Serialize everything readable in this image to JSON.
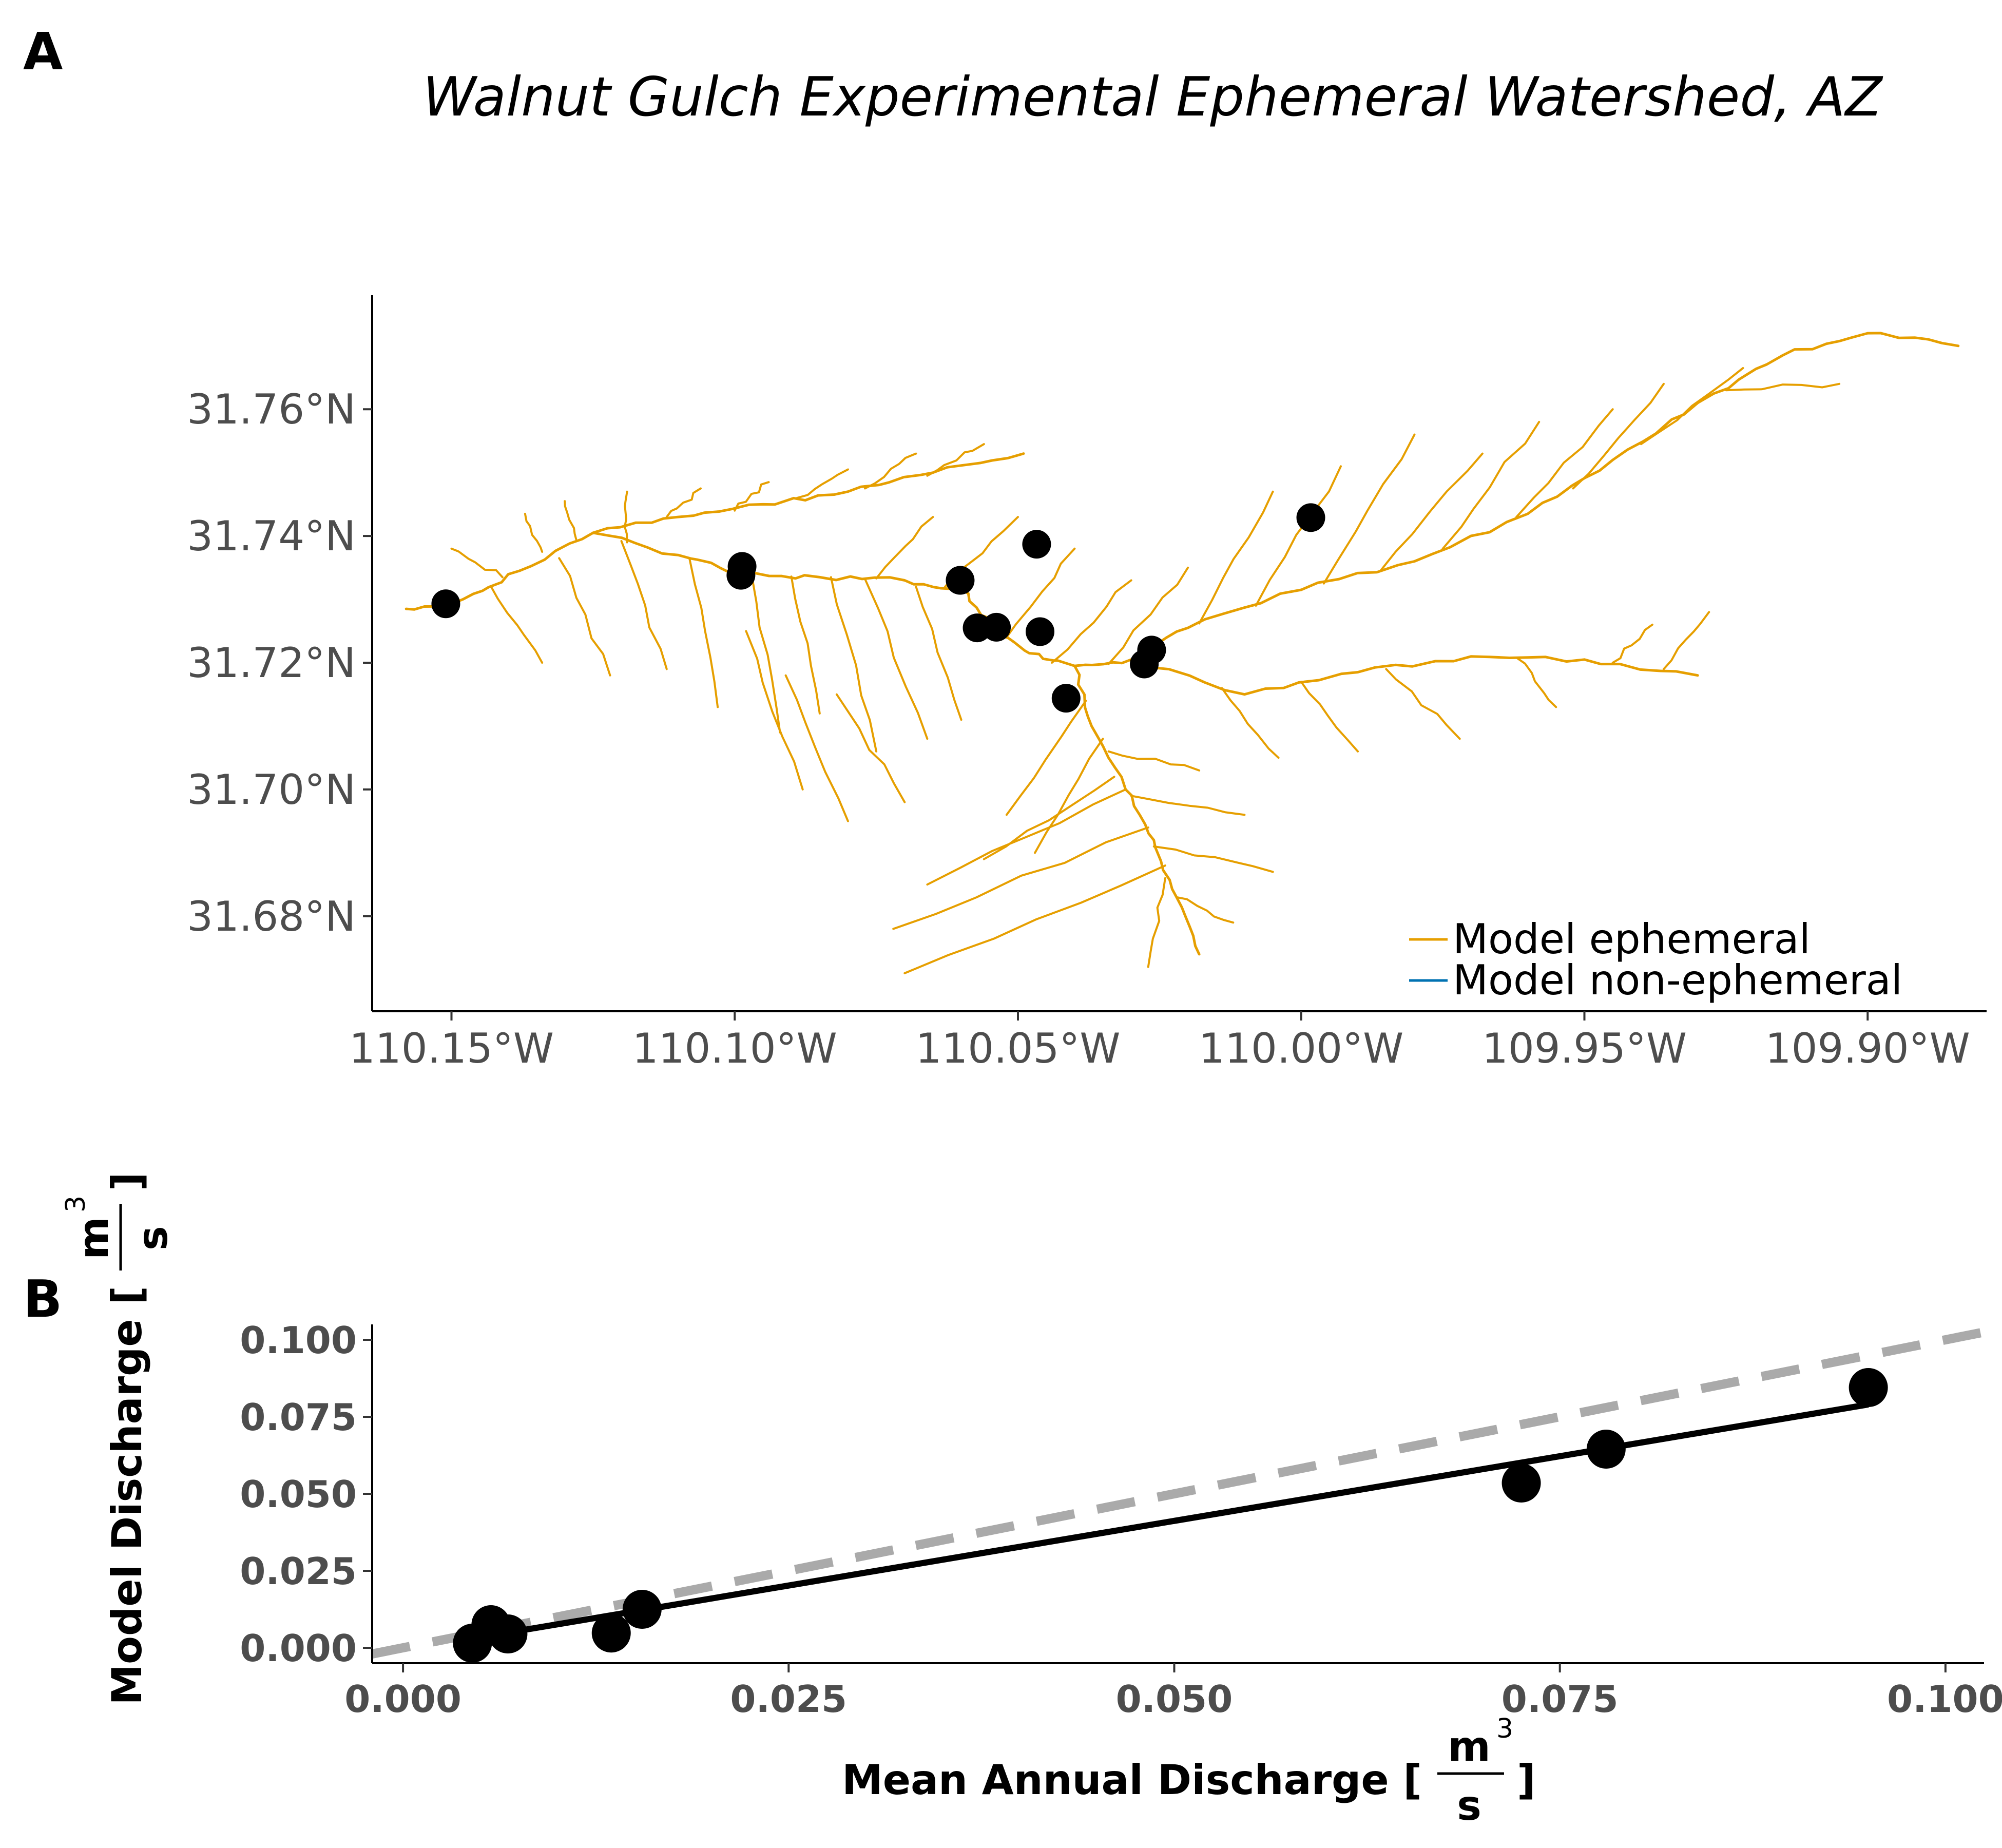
{
  "panel_a_letter": "A",
  "panel_b_letter": "B",
  "colors": {
    "ephemeral": "#E69F00",
    "non_ephemeral": "#0072B2",
    "points": "#000000",
    "fit_line": "#000000",
    "one_to_one": "#aaaaaa",
    "tick_text": "#4d4d4d"
  },
  "chart_data": [
    {
      "type": "map",
      "title": "Walnut Gulch Experimental Ephemeral Watershed, AZ",
      "xlim": [
        -110.164,
        -109.879
      ],
      "ylim": [
        31.665,
        31.778
      ],
      "x_ticks": [
        {
          "value": -110.15,
          "label": "110.15°W"
        },
        {
          "value": -110.1,
          "label": "110.10°W"
        },
        {
          "value": -110.05,
          "label": "110.05°W"
        },
        {
          "value": -110.0,
          "label": "110.00°W"
        },
        {
          "value": -109.95,
          "label": "109.95°W"
        },
        {
          "value": -109.9,
          "label": "109.90°W"
        }
      ],
      "y_ticks": [
        {
          "value": 31.68,
          "label": "31.68°N"
        },
        {
          "value": 31.7,
          "label": "31.70°N"
        },
        {
          "value": 31.72,
          "label": "31.72°N"
        },
        {
          "value": 31.74,
          "label": "31.74°N"
        },
        {
          "value": 31.76,
          "label": "31.76°N"
        }
      ],
      "legend": {
        "position": "bottom-right",
        "entries": [
          {
            "label": "Model ephemeral",
            "color": "#E69F00"
          },
          {
            "label": "Model non-ephemeral",
            "color": "#0072B2"
          }
        ]
      },
      "gauges": [
        {
          "lon": -110.151,
          "lat": 31.7293
        },
        {
          "lon": -110.0987,
          "lat": 31.7352
        },
        {
          "lon": -110.0989,
          "lat": 31.7338
        },
        {
          "lon": -110.0602,
          "lat": 31.733
        },
        {
          "lon": -110.0572,
          "lat": 31.7255
        },
        {
          "lon": -110.0538,
          "lat": 31.7256
        },
        {
          "lon": -110.0467,
          "lat": 31.7387
        },
        {
          "lon": -110.0461,
          "lat": 31.7249
        },
        {
          "lon": -110.0415,
          "lat": 31.7144
        },
        {
          "lon": -110.0277,
          "lat": 31.7198
        },
        {
          "lon": -110.0264,
          "lat": 31.722
        },
        {
          "lon": -109.9983,
          "lat": 31.7429
        }
      ],
      "network": {
        "main_channel": [
          [
            -110.158,
            31.7285
          ],
          [
            -110.148,
            31.73
          ],
          [
            -110.138,
            31.7345
          ],
          [
            -110.125,
            31.7405
          ],
          [
            -110.11,
            31.737
          ],
          [
            -110.099,
            31.734
          ],
          [
            -110.085,
            31.7335
          ],
          [
            -110.07,
            31.733
          ],
          [
            -110.06,
            31.7315
          ],
          [
            -110.055,
            31.726
          ],
          [
            -110.048,
            31.7215
          ],
          [
            -110.04,
            31.7195
          ],
          [
            -110.03,
            31.7205
          ],
          [
            -110.02,
            31.7255
          ],
          [
            -110.0,
            31.7315
          ],
          [
            -109.98,
            31.736
          ],
          [
            -109.96,
            31.7435
          ],
          [
            -109.945,
            31.752
          ],
          [
            -109.93,
            31.761
          ],
          [
            -109.915,
            31.7685
          ],
          [
            -109.9,
            31.772
          ],
          [
            -109.884,
            31.77
          ]
        ],
        "upper_channel": [
          [
            -110.125,
            31.7405
          ],
          [
            -110.11,
            31.743
          ],
          [
            -110.095,
            31.745
          ],
          [
            -110.08,
            31.747
          ],
          [
            -110.065,
            31.75
          ],
          [
            -110.049,
            31.753
          ]
        ],
        "south_channel": [
          [
            -110.04,
            31.7195
          ],
          [
            -110.037,
            31.71
          ],
          [
            -110.031,
            31.7
          ],
          [
            -110.026,
            31.692
          ],
          [
            -110.022,
            31.683
          ],
          [
            -110.018,
            31.674
          ]
        ],
        "east_channel": [
          [
            -110.03,
            31.7205
          ],
          [
            -110.01,
            31.715
          ],
          [
            -109.99,
            31.7185
          ],
          [
            -109.97,
            31.721
          ],
          [
            -109.95,
            31.7205
          ],
          [
            -109.93,
            31.718
          ]
        ],
        "tributaries": [
          [
            [
              -110.141,
              31.7335
            ],
            [
              -110.15,
              31.738
            ]
          ],
          [
            [
              -110.134,
              31.7375
            ],
            [
              -110.137,
              31.7435
            ]
          ],
          [
            [
              -110.128,
              31.7395
            ],
            [
              -110.13,
              31.7455
            ]
          ],
          [
            [
              -110.119,
              31.739
            ],
            [
              -110.119,
              31.747
            ]
          ],
          [
            [
              -110.112,
              31.743
            ],
            [
              -110.106,
              31.7475
            ]
          ],
          [
            [
              -110.1,
              31.744
            ],
            [
              -110.094,
              31.7485
            ]
          ],
          [
            [
              -110.089,
              31.746
            ],
            [
              -110.08,
              31.7505
            ]
          ],
          [
            [
              -110.077,
              31.7475
            ],
            [
              -110.068,
              31.753
            ]
          ],
          [
            [
              -110.066,
              31.7495
            ],
            [
              -110.056,
              31.7545
            ]
          ],
          [
            [
              -110.075,
              31.7333
            ],
            [
              -110.065,
              31.743
            ]
          ],
          [
            [
              -110.063,
              31.7318
            ],
            [
              -110.05,
              31.743
            ]
          ],
          [
            [
              -110.052,
              31.724
            ],
            [
              -110.04,
              31.738
            ]
          ],
          [
            [
              -110.044,
              31.72
            ],
            [
              -110.03,
              31.733
            ]
          ],
          [
            [
              -110.034,
              31.7198
            ],
            [
              -110.02,
              31.735
            ]
          ],
          [
            [
              -110.018,
              31.7262
            ],
            [
              -110.005,
              31.747
            ]
          ],
          [
            [
              -110.008,
              31.729
            ],
            [
              -109.993,
              31.751
            ]
          ],
          [
            [
              -109.996,
              31.7325
            ],
            [
              -109.98,
              31.756
            ]
          ],
          [
            [
              -109.986,
              31.7345
            ],
            [
              -109.968,
              31.753
            ]
          ],
          [
            [
              -109.975,
              31.738
            ],
            [
              -109.958,
              31.758
            ]
          ],
          [
            [
              -109.962,
              31.743
            ],
            [
              -109.945,
              31.76
            ]
          ],
          [
            [
              -109.952,
              31.7475
            ],
            [
              -109.936,
              31.764
            ]
          ],
          [
            [
              -109.94,
              31.7545
            ],
            [
              -109.922,
              31.7665
            ]
          ],
          [
            [
              -109.925,
              31.763
            ],
            [
              -109.905,
              31.764
            ]
          ],
          [
            [
              -110.143,
              31.732
            ],
            [
              -110.134,
              31.72
            ]
          ],
          [
            [
              -110.131,
              31.7365
            ],
            [
              -110.122,
              31.718
            ]
          ],
          [
            [
              -110.12,
              31.7392
            ],
            [
              -110.112,
              31.719
            ]
          ],
          [
            [
              -110.108,
              31.7365
            ],
            [
              -110.103,
              31.713
            ]
          ],
          [
            [
              -110.097,
              31.7338
            ],
            [
              -110.092,
              31.709
            ]
          ],
          [
            [
              -110.09,
              31.7336
            ],
            [
              -110.085,
              31.712
            ]
          ],
          [
            [
              -110.083,
              31.7335
            ],
            [
              -110.075,
              31.706
            ]
          ],
          [
            [
              -110.077,
              31.7332
            ],
            [
              -110.066,
              31.708
            ]
          ],
          [
            [
              -110.098,
              31.725
            ],
            [
              -110.088,
              31.7
            ]
          ],
          [
            [
              -110.091,
              31.718
            ],
            [
              -110.08,
              31.695
            ]
          ],
          [
            [
              -110.082,
              31.715
            ],
            [
              -110.07,
              31.698
            ]
          ],
          [
            [
              -110.068,
              31.732
            ],
            [
              -110.06,
              31.711
            ]
          ],
          [
            [
              -110.038,
              31.714
            ],
            [
              -110.052,
              31.696
            ]
          ],
          [
            [
              -110.035,
              31.708
            ],
            [
              -110.047,
              31.69
            ]
          ],
          [
            [
              -110.033,
              31.702
            ],
            [
              -110.056,
              31.689
            ]
          ],
          [
            [
              -110.031,
              31.7
            ],
            [
              -110.066,
              31.685
            ]
          ],
          [
            [
              -110.027,
              31.694
            ],
            [
              -110.072,
              31.678
            ]
          ],
          [
            [
              -110.024,
              31.688
            ],
            [
              -110.07,
              31.671
            ]
          ],
          [
            [
              -110.034,
              31.706
            ],
            [
              -110.018,
              31.703
            ]
          ],
          [
            [
              -110.03,
              31.699
            ],
            [
              -110.01,
              31.696
            ]
          ],
          [
            [
              -110.026,
              31.691
            ],
            [
              -110.005,
              31.687
            ]
          ],
          [
            [
              -110.022,
              31.683
            ],
            [
              -110.012,
              31.679
            ]
          ],
          [
            [
              -110.024,
              31.686
            ],
            [
              -110.027,
              31.672
            ]
          ],
          [
            [
              -110.014,
              31.716
            ],
            [
              -110.004,
              31.705
            ]
          ],
          [
            [
              -110.0,
              31.717
            ],
            [
              -109.99,
              31.706
            ]
          ],
          [
            [
              -109.985,
              31.719
            ],
            [
              -109.972,
              31.708
            ]
          ],
          [
            [
              -109.962,
              31.7208
            ],
            [
              -109.955,
              31.713
            ]
          ],
          [
            [
              -109.945,
              31.72
            ],
            [
              -109.938,
              31.726
            ]
          ],
          [
            [
              -109.936,
              31.719
            ],
            [
              -109.928,
              31.728
            ]
          ]
        ]
      }
    },
    {
      "type": "scatter",
      "xlabel": "Mean Annual Discharge [",
      "ylabel": "Model Discharge [",
      "unit_numerator": "m",
      "unit_exponent": "3",
      "unit_denominator": "s",
      "unit_close": "]",
      "xlim": [
        -0.002,
        0.1025
      ],
      "ylim": [
        -0.005,
        0.105
      ],
      "x_ticks": [
        {
          "value": 0.0,
          "label": "0.000"
        },
        {
          "value": 0.025,
          "label": "0.025"
        },
        {
          "value": 0.05,
          "label": "0.050"
        },
        {
          "value": 0.075,
          "label": "0.075"
        },
        {
          "value": 0.1,
          "label": "0.100"
        }
      ],
      "y_ticks": [
        {
          "value": 0.0,
          "label": "0.000"
        },
        {
          "value": 0.025,
          "label": "0.025"
        },
        {
          "value": 0.05,
          "label": "0.050"
        },
        {
          "value": 0.075,
          "label": "0.075"
        },
        {
          "value": 0.1,
          "label": "0.100"
        }
      ],
      "points": [
        {
          "x": 0.0045,
          "y": 0.0015
        },
        {
          "x": 0.0057,
          "y": 0.0075
        },
        {
          "x": 0.0068,
          "y": 0.0045
        },
        {
          "x": 0.0135,
          "y": 0.0048
        },
        {
          "x": 0.0155,
          "y": 0.0125
        },
        {
          "x": 0.0725,
          "y": 0.0535
        },
        {
          "x": 0.078,
          "y": 0.0645
        },
        {
          "x": 0.095,
          "y": 0.0845
        }
      ],
      "fit_line": [
        [
          0.0045,
          0.003
        ],
        [
          0.095,
          0.079
        ]
      ],
      "one_to_one_line": [
        [
          -0.002,
          -0.002
        ],
        [
          0.1025,
          0.1025
        ]
      ]
    }
  ]
}
